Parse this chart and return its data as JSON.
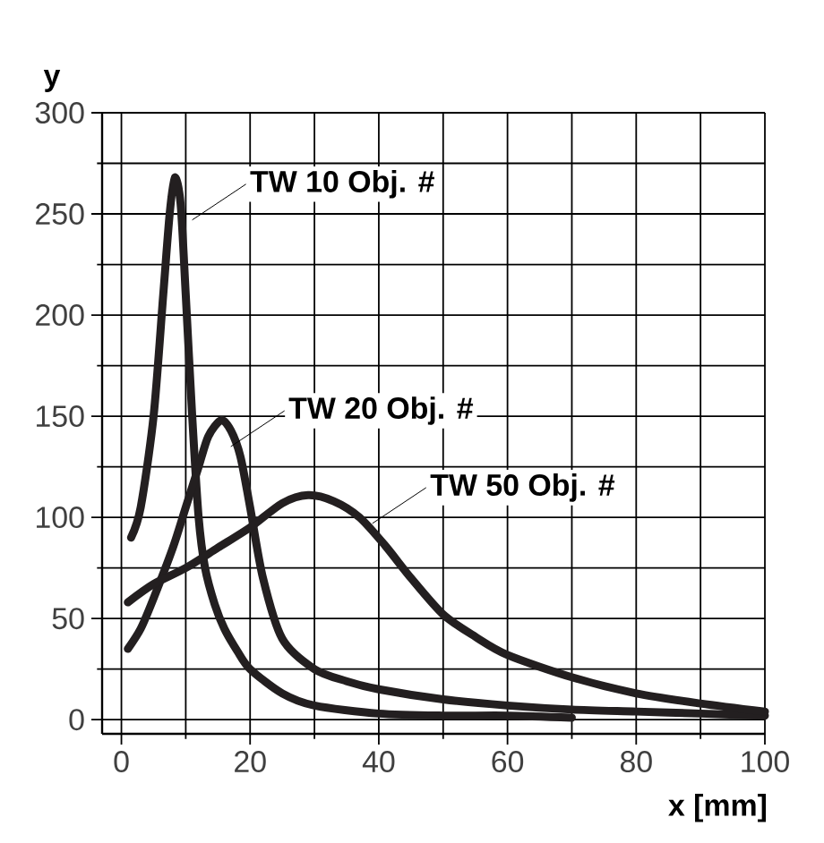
{
  "chart_data": {
    "type": "line",
    "xlabel": "x [mm]",
    "ylabel": "y",
    "xlim": [
      -3,
      100
    ],
    "ylim": [
      -7,
      300
    ],
    "xticks": [
      0,
      20,
      40,
      60,
      80,
      100
    ],
    "yticks": [
      0,
      50,
      100,
      150,
      200,
      250,
      300
    ],
    "grid": true,
    "legend": false,
    "marker": "none",
    "line_style": "solid",
    "series": [
      {
        "color": "#231f20",
        "x": [
          1.5,
          3,
          5,
          6.5,
          7.5,
          8.3,
          9.2,
          10,
          11,
          12,
          13,
          14.5,
          16,
          18,
          20,
          25,
          30,
          40,
          50,
          60,
          70
        ],
        "values": [
          90,
          105,
          150,
          210,
          250,
          268,
          255,
          210,
          150,
          100,
          75,
          57,
          45,
          34,
          25,
          13,
          7,
          3,
          2,
          2,
          1
        ]
      },
      {
        "color": "#231f20",
        "x": [
          1,
          3,
          5,
          8,
          10,
          12,
          13.5,
          15.5,
          17,
          18.5,
          20,
          22,
          25,
          30,
          35,
          40,
          50,
          60,
          70,
          80,
          90,
          100
        ],
        "values": [
          35,
          45,
          60,
          85,
          105,
          125,
          140,
          148,
          143,
          130,
          105,
          70,
          40,
          25,
          19,
          15,
          10,
          7,
          5,
          4,
          3,
          2
        ]
      },
      {
        "color": "#231f20",
        "x": [
          1,
          5,
          10,
          15,
          20,
          25,
          29,
          33,
          37,
          41,
          45,
          50,
          55,
          60,
          70,
          80,
          90,
          100
        ],
        "values": [
          58,
          67,
          75,
          85,
          95,
          107,
          111,
          108,
          100,
          86,
          70,
          52,
          41,
          32,
          21,
          13,
          8,
          4
        ]
      }
    ],
    "annotations": [
      {
        "text": "TW 10 Obj. #",
        "x": 11,
        "y": 247
      },
      {
        "text": "TW 20 Obj. #",
        "x": 17,
        "y": 135
      },
      {
        "text": "TW 50 Obj. #",
        "x": 39,
        "y": 97
      }
    ]
  }
}
